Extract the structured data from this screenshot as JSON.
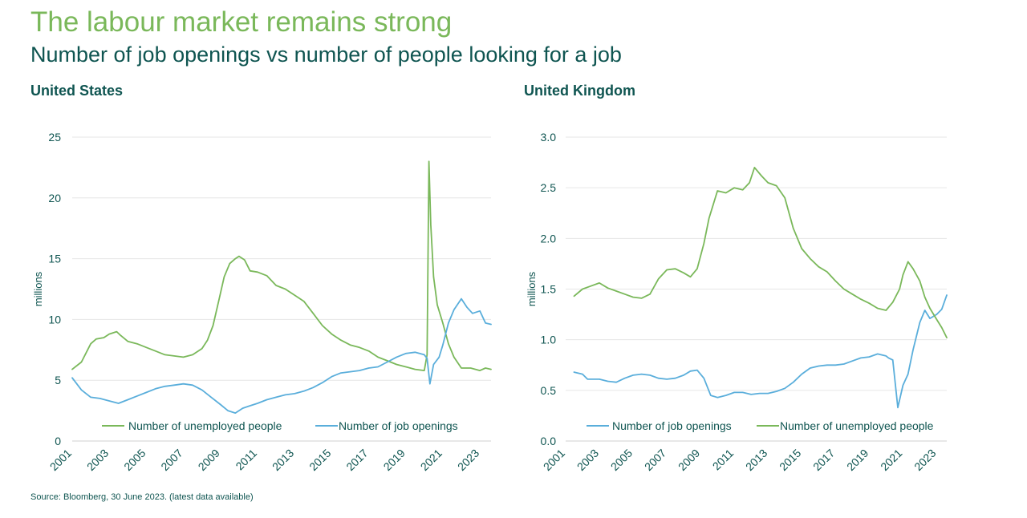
{
  "header": {
    "title": "The labour market remains strong",
    "subtitle": "Number of job openings vs number of people looking for a job"
  },
  "footer": {
    "source": "Source: Bloomberg, 30 June 2023. (latest data available)"
  },
  "colors": {
    "unemployed": "#7ab85a",
    "openings": "#5aaedb",
    "text": "#0f5551",
    "grid": "#e6e6e6"
  },
  "chart_data": [
    {
      "id": "us",
      "type": "line",
      "title": "United States",
      "ylabel": "millions",
      "xlabel": "",
      "xlim": [
        2001,
        2023.6
      ],
      "ylim": [
        0,
        25
      ],
      "yticks": [
        0,
        5,
        10,
        15,
        20,
        25
      ],
      "ytick_labels": [
        "0",
        "5",
        "10",
        "15",
        "20",
        "25"
      ],
      "xticks": [
        2001,
        2003,
        2005,
        2007,
        2009,
        2011,
        2013,
        2015,
        2017,
        2019,
        2021,
        2023
      ],
      "xtick_labels": [
        "2001",
        "2003",
        "2005",
        "2007",
        "2009",
        "2011",
        "2013",
        "2015",
        "2017",
        "2019",
        "2021",
        "2023"
      ],
      "grid": true,
      "legend_position": "bottom",
      "series": [
        {
          "name": "Number of unemployed people",
          "color": "#7ab85a",
          "x": [
            2001.0,
            2001.5,
            2002.0,
            2002.3,
            2002.7,
            2003.0,
            2003.4,
            2003.6,
            2004.0,
            2004.5,
            2005.0,
            2005.5,
            2006.0,
            2006.5,
            2007.0,
            2007.5,
            2008.0,
            2008.3,
            2008.6,
            2008.9,
            2009.2,
            2009.5,
            2009.8,
            2010.0,
            2010.3,
            2010.6,
            2011.0,
            2011.5,
            2012.0,
            2012.5,
            2013.0,
            2013.5,
            2014.0,
            2014.5,
            2015.0,
            2015.5,
            2016.0,
            2016.5,
            2017.0,
            2017.5,
            2018.0,
            2018.5,
            2019.0,
            2019.5,
            2020.0,
            2020.15,
            2020.25,
            2020.35,
            2020.5,
            2020.7,
            2021.0,
            2021.3,
            2021.6,
            2022.0,
            2022.5,
            2023.0,
            2023.3,
            2023.6
          ],
          "y": [
            5.9,
            6.5,
            8.0,
            8.4,
            8.5,
            8.8,
            9.0,
            8.7,
            8.2,
            8.0,
            7.7,
            7.4,
            7.1,
            7.0,
            6.9,
            7.1,
            7.6,
            8.3,
            9.5,
            11.5,
            13.5,
            14.6,
            15.0,
            15.2,
            14.9,
            14.0,
            13.9,
            13.6,
            12.8,
            12.5,
            12.0,
            11.5,
            10.5,
            9.5,
            8.8,
            8.3,
            7.9,
            7.7,
            7.4,
            6.9,
            6.6,
            6.3,
            6.1,
            5.9,
            5.8,
            7.1,
            23.0,
            17.8,
            13.5,
            11.2,
            9.7,
            8.0,
            6.9,
            6.0,
            6.0,
            5.8,
            6.0,
            5.9
          ]
        },
        {
          "name": "Number of job openings",
          "color": "#5aaedb",
          "x": [
            2001.0,
            2001.5,
            2002.0,
            2002.5,
            2003.0,
            2003.5,
            2004.0,
            2004.5,
            2005.0,
            2005.5,
            2006.0,
            2006.5,
            2007.0,
            2007.5,
            2008.0,
            2008.5,
            2009.0,
            2009.4,
            2009.8,
            2010.2,
            2010.6,
            2011.0,
            2011.5,
            2012.0,
            2012.5,
            2013.0,
            2013.5,
            2014.0,
            2014.5,
            2015.0,
            2015.5,
            2016.0,
            2016.5,
            2017.0,
            2017.5,
            2018.0,
            2018.5,
            2019.0,
            2019.5,
            2020.0,
            2020.15,
            2020.3,
            2020.5,
            2020.8,
            2021.0,
            2021.3,
            2021.6,
            2022.0,
            2022.3,
            2022.6,
            2023.0,
            2023.3,
            2023.6
          ],
          "y": [
            5.2,
            4.2,
            3.6,
            3.5,
            3.3,
            3.1,
            3.4,
            3.7,
            4.0,
            4.3,
            4.5,
            4.6,
            4.7,
            4.6,
            4.2,
            3.6,
            3.0,
            2.5,
            2.3,
            2.7,
            2.9,
            3.1,
            3.4,
            3.6,
            3.8,
            3.9,
            4.1,
            4.4,
            4.8,
            5.3,
            5.6,
            5.7,
            5.8,
            6.0,
            6.1,
            6.5,
            6.9,
            7.2,
            7.3,
            7.1,
            6.8,
            4.7,
            6.3,
            6.9,
            7.9,
            9.7,
            10.8,
            11.7,
            11.0,
            10.5,
            10.7,
            9.7,
            9.6
          ]
        }
      ]
    },
    {
      "id": "uk",
      "type": "line",
      "title": "United Kingdom",
      "ylabel": "millions",
      "xlabel": "",
      "xlim": [
        2001,
        2023.6
      ],
      "ylim": [
        0,
        3
      ],
      "yticks": [
        0,
        0.5,
        1,
        1.5,
        2,
        2.5,
        3
      ],
      "ytick_labels": [
        "0.0",
        "0.5",
        "1.0",
        "1.5",
        "2.0",
        "2.5",
        "3.0"
      ],
      "xticks": [
        2001,
        2003,
        2005,
        2007,
        2009,
        2011,
        2013,
        2015,
        2017,
        2019,
        2021,
        2023
      ],
      "xtick_labels": [
        "2001",
        "2003",
        "2005",
        "2007",
        "2009",
        "2011",
        "2013",
        "2015",
        "2017",
        "2019",
        "2021",
        "2023"
      ],
      "grid": true,
      "legend_position": "bottom",
      "series": [
        {
          "name": "Number of job openings",
          "color": "#5aaedb",
          "x": [
            2001.5,
            2002.0,
            2002.3,
            2003.0,
            2003.5,
            2004.0,
            2004.5,
            2005.0,
            2005.5,
            2006.0,
            2006.5,
            2007.0,
            2007.5,
            2008.0,
            2008.4,
            2008.8,
            2009.2,
            2009.6,
            2010.0,
            2010.5,
            2011.0,
            2011.5,
            2012.0,
            2012.5,
            2013.0,
            2013.5,
            2014.0,
            2014.5,
            2015.0,
            2015.5,
            2016.0,
            2016.5,
            2017.0,
            2017.5,
            2018.0,
            2018.5,
            2019.0,
            2019.5,
            2020.0,
            2020.15,
            2020.4,
            2020.7,
            2021.0,
            2021.3,
            2021.6,
            2022.0,
            2022.3,
            2022.6,
            2023.0,
            2023.3,
            2023.6
          ],
          "y": [
            0.68,
            0.66,
            0.61,
            0.61,
            0.59,
            0.58,
            0.62,
            0.65,
            0.66,
            0.65,
            0.62,
            0.61,
            0.62,
            0.65,
            0.69,
            0.7,
            0.62,
            0.45,
            0.43,
            0.45,
            0.48,
            0.48,
            0.46,
            0.47,
            0.47,
            0.49,
            0.52,
            0.58,
            0.66,
            0.72,
            0.74,
            0.75,
            0.75,
            0.76,
            0.79,
            0.82,
            0.83,
            0.86,
            0.84,
            0.82,
            0.8,
            0.33,
            0.55,
            0.66,
            0.9,
            1.17,
            1.29,
            1.21,
            1.25,
            1.3,
            1.44
          ]
        },
        {
          "name": "Number of unemployed people",
          "color": "#7ab85a",
          "x": [
            2001.5,
            2002.0,
            2002.5,
            2003.0,
            2003.5,
            2004.0,
            2004.5,
            2005.0,
            2005.5,
            2006.0,
            2006.5,
            2007.0,
            2007.5,
            2008.0,
            2008.4,
            2008.8,
            2009.2,
            2009.5,
            2010.0,
            2010.5,
            2011.0,
            2011.5,
            2011.9,
            2012.2,
            2012.6,
            2013.0,
            2013.5,
            2014.0,
            2014.5,
            2015.0,
            2015.5,
            2016.0,
            2016.5,
            2017.0,
            2017.5,
            2018.0,
            2018.5,
            2019.0,
            2019.5,
            2020.0,
            2020.4,
            2020.8,
            2021.0,
            2021.3,
            2021.6,
            2022.0,
            2022.3,
            2022.6,
            2023.0,
            2023.3,
            2023.6
          ],
          "y": [
            1.43,
            1.5,
            1.53,
            1.56,
            1.51,
            1.48,
            1.45,
            1.42,
            1.41,
            1.45,
            1.6,
            1.69,
            1.7,
            1.66,
            1.62,
            1.7,
            1.95,
            2.2,
            2.47,
            2.45,
            2.5,
            2.48,
            2.55,
            2.7,
            2.62,
            2.55,
            2.52,
            2.4,
            2.1,
            1.9,
            1.8,
            1.72,
            1.67,
            1.58,
            1.5,
            1.45,
            1.4,
            1.36,
            1.31,
            1.29,
            1.37,
            1.5,
            1.64,
            1.77,
            1.7,
            1.58,
            1.42,
            1.31,
            1.2,
            1.12,
            1.02
          ]
        }
      ]
    }
  ]
}
